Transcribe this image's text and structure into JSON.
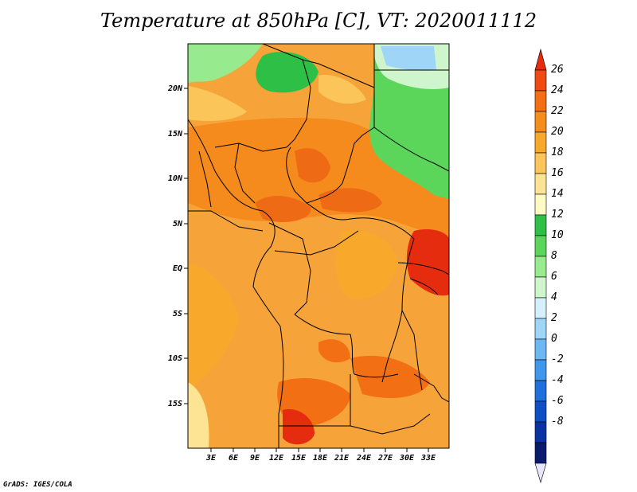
{
  "title": "Temperature at 850hPa [C], VT: 2020011112",
  "credit": "GrADS: IGES/COLA",
  "map": {
    "lon_range": [
      -1,
      35
    ],
    "lat_range": [
      -20,
      24
    ],
    "lat_ticks": [
      "20N",
      "15N",
      "10N",
      "5N",
      "EQ",
      "5S",
      "10S",
      "15S"
    ],
    "lon_ticks": [
      "3E",
      "6E",
      "9E",
      "12E",
      "15E",
      "18E",
      "21E",
      "24E",
      "27E",
      "30E",
      "33E"
    ]
  },
  "colorbar": {
    "labels": [
      "26",
      "24",
      "22",
      "20",
      "18",
      "16",
      "14",
      "12",
      "10",
      "8",
      "6",
      "4",
      "2",
      "0",
      "-2",
      "-4",
      "-6",
      "-8"
    ],
    "colors": [
      "#e62c0f",
      "#f04a12",
      "#f26f13",
      "#f68d1a",
      "#f8a82a",
      "#fbc55a",
      "#fde494",
      "#fff9c4",
      "#2ec046",
      "#5cd65a",
      "#98ea8e",
      "#cff5cc",
      "#d6f0fb",
      "#9fd6f8",
      "#6db8f4",
      "#3f96ec",
      "#1f6fdc",
      "#0f4fc6",
      "#0a32a2",
      "#0a1a6e",
      "#e8e6fa"
    ]
  }
}
